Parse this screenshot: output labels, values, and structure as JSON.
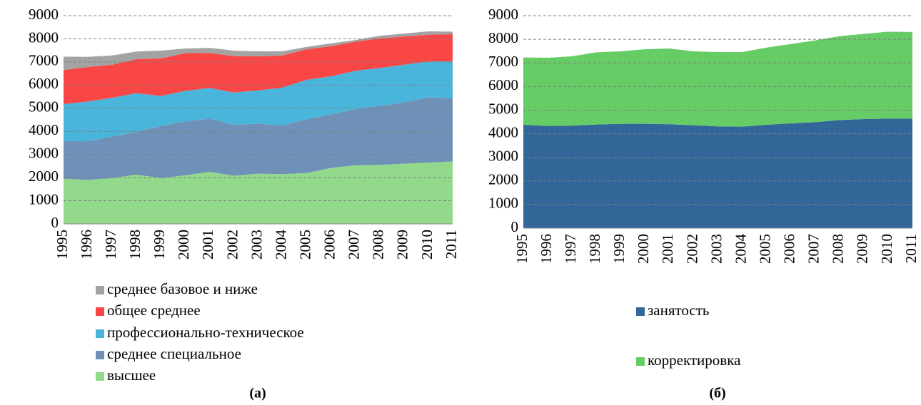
{
  "chart_data": [
    {
      "type": "stacked-area",
      "caption": "(а)",
      "categories": [
        1995,
        1996,
        1997,
        1998,
        1999,
        2000,
        2001,
        2002,
        2003,
        2004,
        2005,
        2006,
        2007,
        2008,
        2009,
        2010,
        2011
      ],
      "ylim": [
        0,
        9000
      ],
      "yticks": [
        0,
        1000,
        2000,
        3000,
        4000,
        5000,
        6000,
        7000,
        8000,
        9000
      ],
      "grid": true,
      "series": [
        {
          "name": "высшее",
          "color": "#92d98c",
          "values": [
            1950,
            1900,
            1980,
            2130,
            1980,
            2100,
            2250,
            2080,
            2170,
            2150,
            2200,
            2420,
            2530,
            2550,
            2600,
            2650,
            2700
          ]
        },
        {
          "name": "среднее специальное",
          "color": "#6f91b8",
          "values": [
            1630,
            1670,
            1800,
            1850,
            2250,
            2330,
            2300,
            2200,
            2160,
            2110,
            2320,
            2320,
            2430,
            2550,
            2650,
            2820,
            2720
          ]
        },
        {
          "name": "профессионально-техническое",
          "color": "#4ab5da",
          "values": [
            1600,
            1720,
            1670,
            1670,
            1300,
            1320,
            1330,
            1400,
            1440,
            1630,
            1710,
            1640,
            1660,
            1640,
            1630,
            1550,
            1610
          ]
        },
        {
          "name": "общее среднее",
          "color": "#fb4646",
          "values": [
            1470,
            1490,
            1430,
            1470,
            1620,
            1630,
            1510,
            1570,
            1470,
            1390,
            1320,
            1300,
            1260,
            1280,
            1220,
            1160,
            1170
          ]
        },
        {
          "name": "среднее базовое и ниже",
          "color": "#a3a3a3",
          "values": [
            580,
            440,
            400,
            330,
            340,
            200,
            220,
            240,
            220,
            180,
            100,
            120,
            70,
            110,
            130,
            140,
            110
          ]
        }
      ]
    },
    {
      "type": "stacked-area",
      "caption": "(б)",
      "categories": [
        1995,
        1996,
        1997,
        1998,
        1999,
        2000,
        2001,
        2002,
        2003,
        2004,
        2005,
        2006,
        2007,
        2008,
        2009,
        2010,
        2011
      ],
      "ylim": [
        0,
        9000
      ],
      "yticks": [
        0,
        1000,
        2000,
        3000,
        4000,
        5000,
        6000,
        7000,
        8000,
        9000
      ],
      "grid": true,
      "series": [
        {
          "name": "занятость",
          "color": "#336699",
          "values": [
            4380,
            4330,
            4340,
            4390,
            4420,
            4420,
            4400,
            4360,
            4310,
            4300,
            4380,
            4440,
            4490,
            4580,
            4620,
            4640,
            4640
          ]
        },
        {
          "name": "корректировка",
          "color": "#66cc66",
          "values": [
            2850,
            2890,
            2940,
            3060,
            3070,
            3160,
            3210,
            3130,
            3150,
            3160,
            3270,
            3360,
            3460,
            3550,
            3610,
            3680,
            3670
          ]
        }
      ]
    }
  ]
}
